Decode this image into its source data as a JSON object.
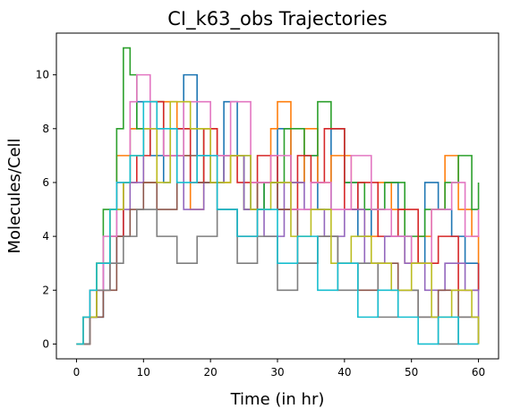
{
  "chart_data": {
    "type": "line",
    "title": "CI_k63_obs Trajectories",
    "xlabel": "Time (in hr)",
    "ylabel": "Molecules/Cell",
    "xlim": [
      -3,
      63
    ],
    "ylim": [
      -0.55,
      11.55
    ],
    "xticks": [
      0,
      10,
      20,
      30,
      40,
      50,
      60
    ],
    "yticks": [
      0,
      2,
      4,
      6,
      8,
      10
    ],
    "grid": false,
    "legend": "none",
    "step_plot": true,
    "colors": [
      "#1f77b4",
      "#ff7f0e",
      "#2ca02c",
      "#d62728",
      "#9467bd",
      "#8c564b",
      "#e377c2",
      "#7f7f7f",
      "#bcbd22",
      "#17becf"
    ],
    "series": [
      {
        "color": "#1f77b4",
        "x": [
          0,
          2,
          4,
          5,
          7,
          8,
          9,
          11,
          13,
          14,
          16,
          18,
          20,
          22,
          24,
          26,
          28,
          30,
          32,
          34,
          36,
          38,
          40,
          42,
          44,
          46,
          48,
          50,
          52,
          54,
          56,
          58,
          60
        ],
        "y": [
          0,
          1,
          3,
          4,
          6,
          8,
          9,
          7,
          6,
          8,
          10,
          7,
          6,
          9,
          7,
          5,
          6,
          8,
          6,
          7,
          5,
          8,
          6,
          4,
          5,
          6,
          4,
          3,
          6,
          5,
          4,
          3,
          2
        ]
      },
      {
        "color": "#ff7f0e",
        "x": [
          0,
          2,
          3,
          5,
          6,
          8,
          10,
          12,
          15,
          17,
          19,
          21,
          23,
          25,
          27,
          29,
          30,
          32,
          34,
          36,
          38,
          41,
          43,
          45,
          47,
          49,
          51,
          53,
          55,
          57,
          59,
          60
        ],
        "y": [
          0,
          2,
          3,
          5,
          7,
          8,
          6,
          9,
          7,
          5,
          8,
          6,
          7,
          5,
          6,
          8,
          9,
          6,
          8,
          6,
          7,
          5,
          4,
          6,
          5,
          3,
          4,
          5,
          7,
          5,
          4,
          3
        ]
      },
      {
        "color": "#2ca02c",
        "x": [
          0,
          1,
          3,
          4,
          6,
          7,
          8,
          9,
          11,
          13,
          16,
          19,
          22,
          25,
          28,
          31,
          34,
          36,
          38,
          40,
          43,
          46,
          49,
          52,
          55,
          57,
          59,
          60
        ],
        "y": [
          0,
          1,
          3,
          5,
          8,
          11,
          10,
          8,
          9,
          7,
          8,
          6,
          7,
          5,
          6,
          8,
          7,
          9,
          8,
          6,
          5,
          6,
          4,
          5,
          6,
          7,
          5,
          6
        ]
      },
      {
        "color": "#d62728",
        "x": [
          0,
          2,
          3,
          5,
          7,
          9,
          11,
          13,
          15,
          17,
          19,
          21,
          24,
          27,
          30,
          33,
          35,
          37,
          40,
          42,
          45,
          48,
          51,
          54,
          57,
          60
        ],
        "y": [
          0,
          1,
          2,
          4,
          6,
          7,
          9,
          7,
          8,
          6,
          8,
          7,
          6,
          7,
          5,
          7,
          6,
          8,
          5,
          6,
          4,
          5,
          3,
          4,
          2,
          3
        ]
      },
      {
        "color": "#9467bd",
        "x": [
          0,
          1,
          3,
          4,
          6,
          8,
          10,
          13,
          16,
          19,
          22,
          25,
          28,
          31,
          34,
          37,
          40,
          43,
          46,
          49,
          52,
          55,
          58,
          60
        ],
        "y": [
          0,
          1,
          2,
          3,
          5,
          6,
          8,
          7,
          5,
          6,
          7,
          5,
          4,
          6,
          5,
          4,
          5,
          3,
          4,
          3,
          2,
          3,
          2,
          1
        ]
      },
      {
        "color": "#8c564b",
        "x": [
          0,
          2,
          4,
          6,
          8,
          10,
          12,
          15,
          18,
          21,
          24,
          27,
          30,
          33,
          36,
          39,
          42,
          45,
          48,
          51,
          54,
          57,
          60
        ],
        "y": [
          0,
          1,
          2,
          4,
          5,
          6,
          5,
          7,
          6,
          5,
          4,
          6,
          5,
          3,
          4,
          3,
          2,
          3,
          2,
          1,
          2,
          1,
          0
        ]
      },
      {
        "color": "#e377c2",
        "x": [
          0,
          1,
          2,
          4,
          6,
          8,
          9,
          11,
          13,
          16,
          20,
          23,
          26,
          29,
          32,
          35,
          38,
          41,
          44,
          47,
          50,
          53,
          56,
          58,
          60
        ],
        "y": [
          0,
          1,
          2,
          4,
          6,
          9,
          10,
          8,
          7,
          9,
          7,
          9,
          6,
          7,
          5,
          6,
          5,
          7,
          5,
          4,
          3,
          5,
          6,
          4,
          5
        ]
      },
      {
        "color": "#7f7f7f",
        "x": [
          0,
          2,
          3,
          5,
          7,
          9,
          12,
          15,
          18,
          21,
          24,
          27,
          30,
          33,
          36,
          39,
          42,
          45,
          48,
          51,
          54,
          57,
          60
        ],
        "y": [
          0,
          1,
          2,
          3,
          4,
          5,
          4,
          3,
          4,
          5,
          3,
          4,
          2,
          3,
          4,
          2,
          3,
          1,
          2,
          1,
          0,
          1,
          0
        ]
      },
      {
        "color": "#bcbd22",
        "x": [
          0,
          1,
          3,
          5,
          7,
          8,
          10,
          12,
          14,
          17,
          20,
          23,
          26,
          29,
          32,
          35,
          38,
          41,
          44,
          47,
          50,
          53,
          56,
          59,
          60
        ],
        "y": [
          0,
          1,
          3,
          5,
          6,
          7,
          8,
          6,
          9,
          8,
          6,
          7,
          5,
          6,
          4,
          5,
          3,
          4,
          3,
          2,
          3,
          1,
          2,
          1,
          0
        ]
      },
      {
        "color": "#17becf",
        "x": [
          0,
          1,
          2,
          3,
          5,
          6,
          8,
          10,
          12,
          15,
          18,
          21,
          24,
          27,
          30,
          33,
          36,
          39,
          42,
          45,
          48,
          51,
          54,
          57,
          60
        ],
        "y": [
          0,
          1,
          2,
          3,
          5,
          6,
          7,
          9,
          8,
          6,
          7,
          5,
          4,
          5,
          3,
          4,
          2,
          3,
          1,
          2,
          1,
          0,
          1,
          0,
          0
        ]
      }
    ]
  }
}
